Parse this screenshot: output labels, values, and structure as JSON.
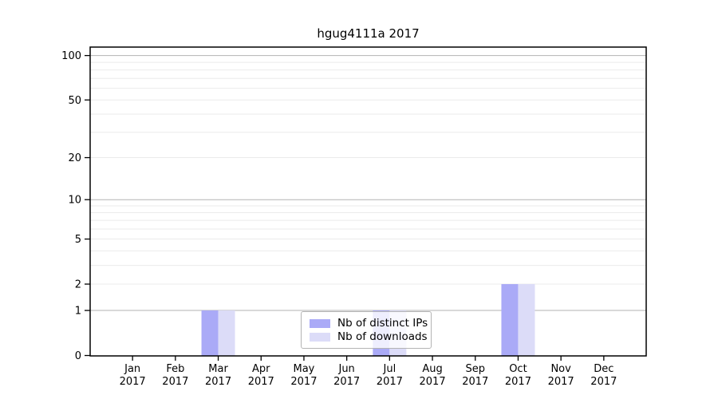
{
  "chart_data": {
    "type": "bar",
    "title": "hgug4111a 2017",
    "categories": [
      "Jan",
      "Feb",
      "Mar",
      "Apr",
      "May",
      "Jun",
      "Jul",
      "Aug",
      "Sep",
      "Oct",
      "Nov",
      "Dec"
    ],
    "category_year": "2017",
    "series": [
      {
        "name": "Nb of distinct IPs",
        "color": "#aaaaf7",
        "values": [
          0,
          0,
          1,
          0,
          0,
          0,
          1,
          0,
          0,
          2,
          0,
          0
        ]
      },
      {
        "name": "Nb of downloads",
        "color": "#dcdcf8",
        "values": [
          0,
          0,
          1,
          0,
          0,
          0,
          1,
          0,
          0,
          2,
          0,
          0
        ]
      }
    ],
    "yscale": "log1p",
    "ylim": [
      0,
      114
    ],
    "y_tick_values": [
      0,
      1,
      2,
      5,
      10,
      20,
      50,
      100
    ],
    "major_gridlines": [
      1,
      10,
      100
    ],
    "minor_gridlines": [
      2,
      3,
      4,
      5,
      6,
      7,
      8,
      9,
      20,
      30,
      40,
      50,
      60,
      70,
      80,
      90
    ],
    "grid": "horizontal",
    "legend": {
      "position": "inside-bottom-center",
      "labels": [
        "Nb of distinct IPs",
        "Nb of downloads"
      ]
    },
    "colors": {
      "major_grid": "#b3b3b3",
      "minor_grid": "#ebebeb",
      "axis": "#000000",
      "background": "#ffffff"
    }
  }
}
